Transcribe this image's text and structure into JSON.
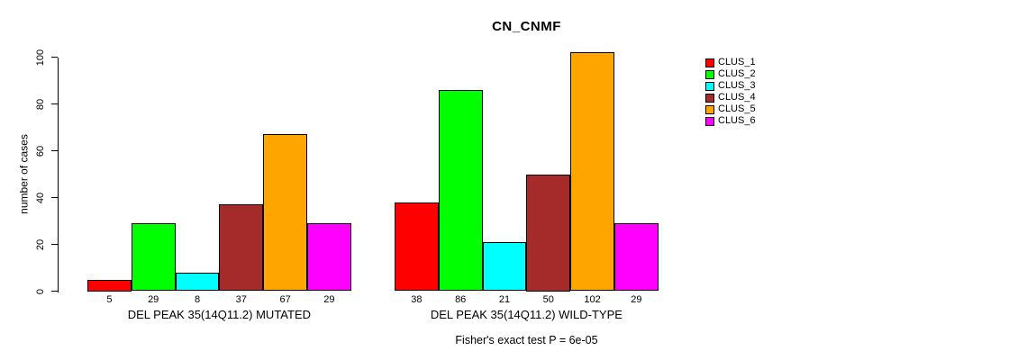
{
  "chart_data": {
    "type": "bar",
    "title": "CN_CNMF",
    "ylabel": "number of cases",
    "xlabel": "",
    "ylim": [
      0,
      100
    ],
    "yticks": [
      0,
      20,
      40,
      60,
      80,
      100
    ],
    "grid": false,
    "legend_position": "right",
    "bar_value_labels": true,
    "categories": [
      "DEL PEAK 35(14Q11.2) MUTATED",
      "DEL PEAK 35(14Q11.2) WILD-TYPE"
    ],
    "series": [
      {
        "name": "CLUS_1",
        "color": "#FF0000",
        "values": [
          5,
          38
        ]
      },
      {
        "name": "CLUS_2",
        "color": "#00FF00",
        "values": [
          29,
          86
        ]
      },
      {
        "name": "CLUS_3",
        "color": "#00FFFF",
        "values": [
          8,
          21
        ]
      },
      {
        "name": "CLUS_4",
        "color": "#A52A2A",
        "values": [
          37,
          50
        ]
      },
      {
        "name": "CLUS_5",
        "color": "#FFA500",
        "values": [
          67,
          102
        ]
      },
      {
        "name": "CLUS_6",
        "color": "#FF00FF",
        "values": [
          29,
          29
        ]
      }
    ],
    "annotation": "Fisher's exact test P = 6e-05",
    "axis_color": "#000000",
    "bar_border_color": "#000000",
    "background_color": "#FFFFFF"
  }
}
